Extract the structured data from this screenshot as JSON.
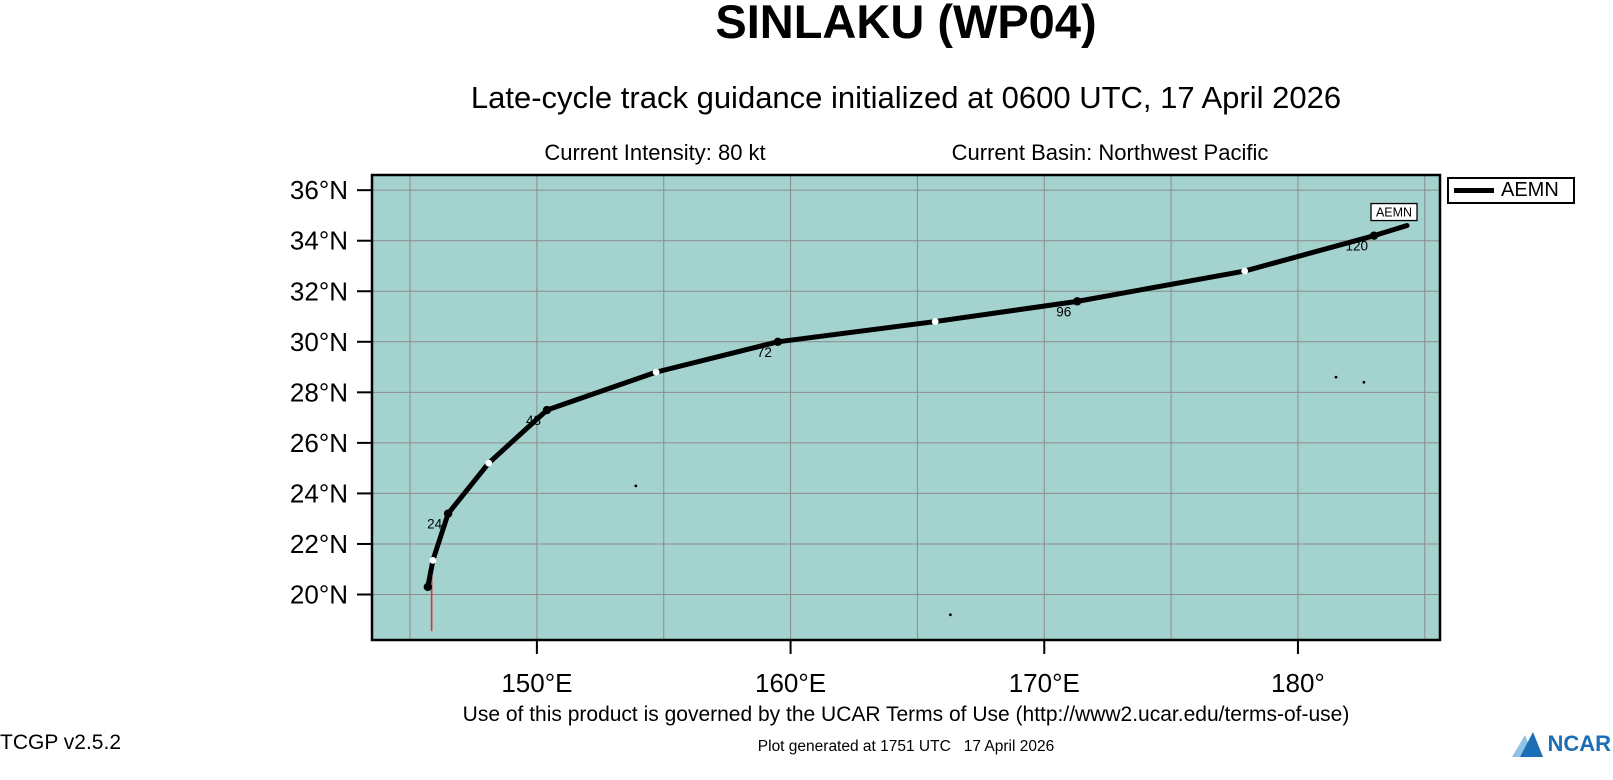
{
  "footer": {
    "terms": "Use of this product is governed by the UCAR Terms of Use (http://www2.ucar.edu/terms-of-use)",
    "version": "TCGP v2.5.2",
    "generated": "Plot generated at 1751 UTC   17 April 2026",
    "logo": "NCAR"
  },
  "chart_data": {
    "type": "line",
    "title": "SINLAKU (WP04)",
    "subtitle": "Late-cycle track guidance initialized at 0600 UTC, 17 April 2026",
    "annotations": {
      "intensity": "Current Intensity: 80 kt",
      "basin": "Current Basin: Northwest Pacific"
    },
    "x_axis": {
      "lim": [
        143.5,
        185.6
      ],
      "grid_degs": [
        145,
        150,
        155,
        160,
        165,
        170,
        175,
        180,
        185
      ],
      "ticks": [
        {
          "deg": 150,
          "label": "150°E"
        },
        {
          "deg": 160,
          "label": "160°E"
        },
        {
          "deg": 170,
          "label": "170°E"
        },
        {
          "deg": 180,
          "label": "180°"
        }
      ]
    },
    "y_axis": {
      "lim": [
        18.2,
        36.6
      ],
      "ticks": [
        {
          "deg": 20,
          "label": "20°N"
        },
        {
          "deg": 22,
          "label": "22°N"
        },
        {
          "deg": 24,
          "label": "24°N"
        },
        {
          "deg": 26,
          "label": "26°N"
        },
        {
          "deg": 28,
          "label": "28°N"
        },
        {
          "deg": 30,
          "label": "30°N"
        },
        {
          "deg": 32,
          "label": "32°N"
        },
        {
          "deg": 34,
          "label": "34°N"
        },
        {
          "deg": 36,
          "label": "36°N"
        }
      ]
    },
    "legend": {
      "position": "top-right",
      "entries": [
        "AEMN"
      ]
    },
    "colors": {
      "map_bg": "#a4d2ce",
      "grid": "#8c8c8c",
      "track": "#000000",
      "red_line": "#e03131",
      "ncar_blue": "#1d6fb5"
    },
    "series": [
      {
        "name": "AEMN",
        "color": "#000000",
        "points": [
          {
            "hr": 0,
            "lon": 145.7,
            "lat": 20.3,
            "marker": "dot",
            "label": ""
          },
          {
            "hr": 12,
            "lon": 145.9,
            "lat": 21.35,
            "marker": "white",
            "label": ""
          },
          {
            "hr": 24,
            "lon": 146.5,
            "lat": 23.2,
            "marker": "dot",
            "label": "24"
          },
          {
            "hr": 36,
            "lon": 148.1,
            "lat": 25.2,
            "marker": "white",
            "label": ""
          },
          {
            "hr": 48,
            "lon": 150.4,
            "lat": 27.3,
            "marker": "dot",
            "label": "48"
          },
          {
            "hr": 60,
            "lon": 154.7,
            "lat": 28.8,
            "marker": "white",
            "label": ""
          },
          {
            "hr": 72,
            "lon": 159.5,
            "lat": 30.0,
            "marker": "dot",
            "label": "72"
          },
          {
            "hr": 84,
            "lon": 165.7,
            "lat": 30.8,
            "marker": "white",
            "label": ""
          },
          {
            "hr": 96,
            "lon": 171.3,
            "lat": 31.6,
            "marker": "dot",
            "label": "96"
          },
          {
            "hr": 108,
            "lon": 177.9,
            "lat": 32.8,
            "marker": "white",
            "label": ""
          },
          {
            "hr": 120,
            "lon": 183.0,
            "lat": 34.2,
            "marker": "dot",
            "label": "120"
          },
          {
            "hr": null,
            "lon": 184.3,
            "lat": 34.6,
            "marker": "none",
            "label": ""
          }
        ]
      }
    ],
    "end_label": "AEMN",
    "red_segment": {
      "lon": 145.85,
      "lat_from": 21.4,
      "lat_to": 18.55
    },
    "islands": [
      [
        153.9,
        24.3
      ],
      [
        166.3,
        19.2
      ],
      [
        181.5,
        28.6
      ],
      [
        182.6,
        28.4
      ]
    ]
  }
}
